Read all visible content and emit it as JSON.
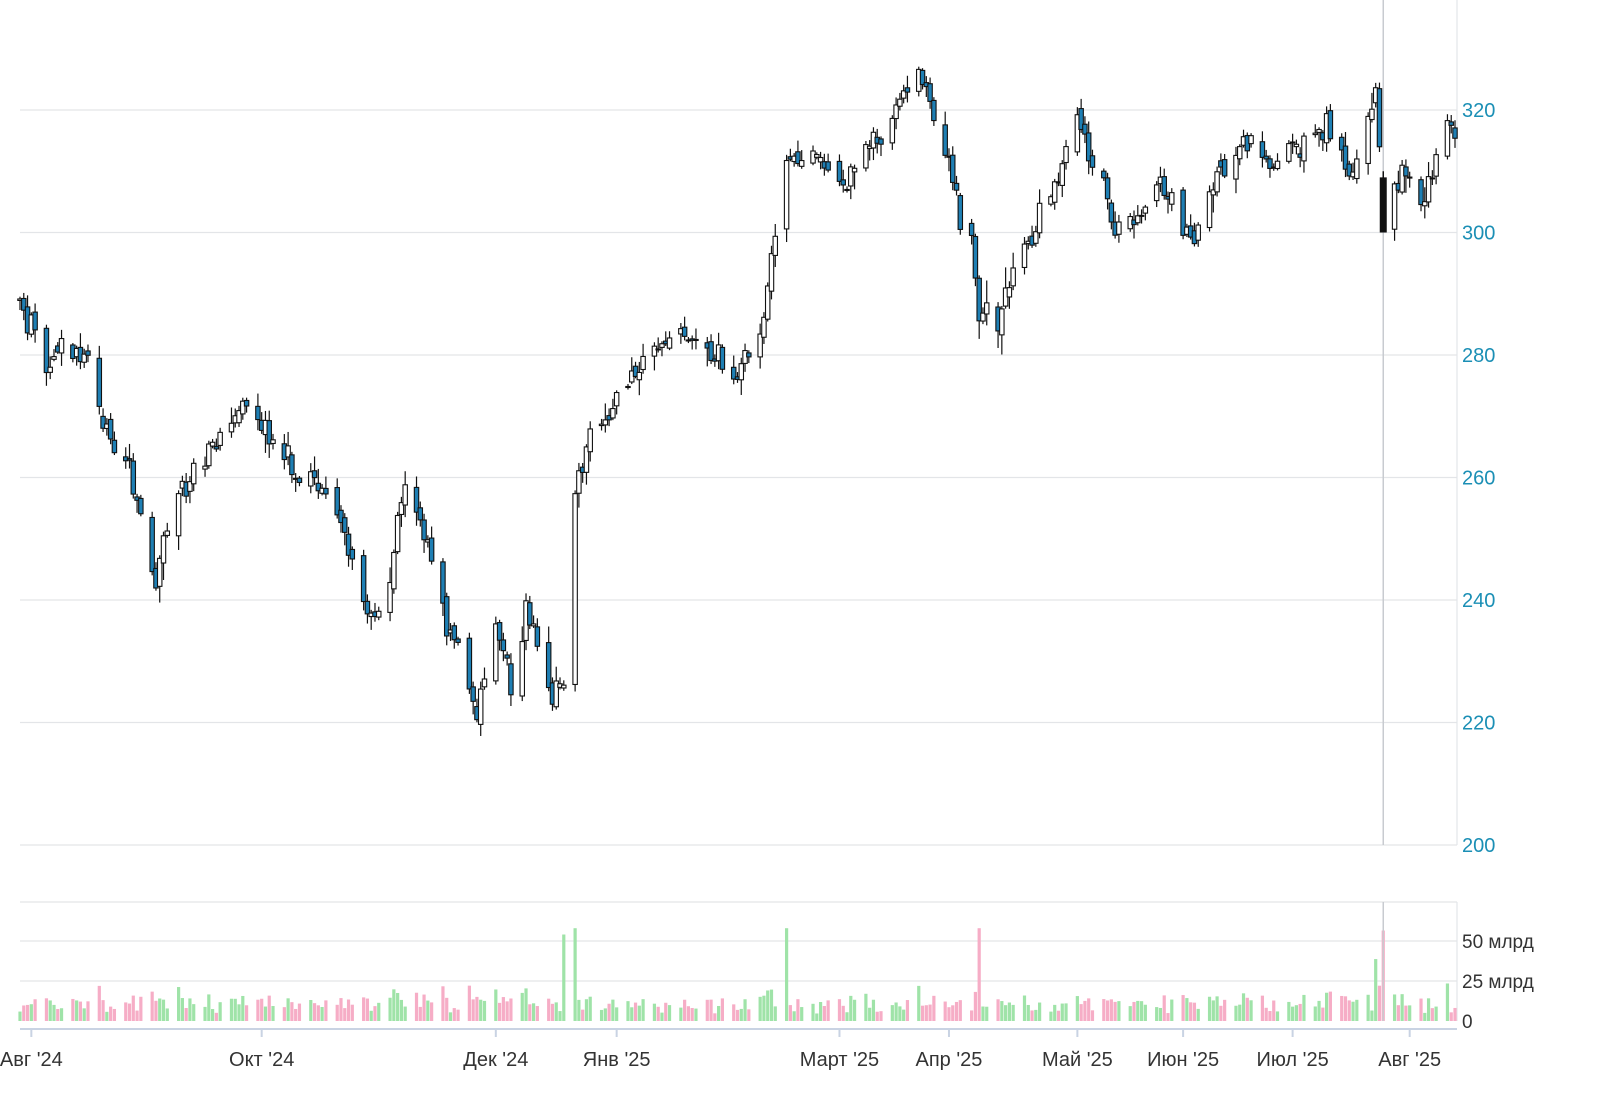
{
  "colors": {
    "background": "#ffffff",
    "grid": "#e3e5e8",
    "axis_line": "#c9d3e3",
    "price_label": "#1b8fb5",
    "volume_label": "#333333",
    "date_label": "#333333",
    "candle_up": "#ffffff",
    "candle_down": "#1e7fb4",
    "candle_outline": "#111111",
    "cursor_line": "#c8cbd0",
    "cursor_candle": "#111111",
    "volume_up": "#9fe3a8",
    "volume_down": "#f6adc6"
  },
  "chart_data": {
    "type": "candlestick",
    "price_axis": {
      "ylim": [
        200,
        334
      ],
      "ticks": [
        200,
        220,
        240,
        260,
        280,
        300,
        320
      ],
      "tick_labels": [
        "200",
        "220",
        "240",
        "260",
        "280",
        "300",
        "320"
      ]
    },
    "volume_axis": {
      "ylim": [
        0,
        75
      ],
      "ticks": [
        0,
        25,
        50
      ],
      "tick_labels": [
        "0",
        "25 млрд",
        "50 млрд"
      ],
      "unit": "млрд"
    },
    "x_axis": {
      "start": "2024-07-29",
      "end": "2025-08-13",
      "tick_dates": [
        "2024-08-01",
        "2024-10-01",
        "2024-12-02",
        "2025-01-03",
        "2025-03-03",
        "2025-04-01",
        "2025-05-05",
        "2025-06-02",
        "2025-07-01",
        "2025-08-01"
      ],
      "tick_labels": [
        "Авг '24",
        "Окт '24",
        "Дек '24",
        "Янв '25",
        "Март '25",
        "Апр '25",
        "Май '25",
        "Июн '25",
        "Июл '25",
        "Авг '25"
      ]
    },
    "anchors": [
      [
        "2024-07-29",
        289
      ],
      [
        "2024-08-05",
        278
      ],
      [
        "2024-08-10",
        283
      ],
      [
        "2024-08-16",
        280
      ],
      [
        "2024-08-22",
        265
      ],
      [
        "2024-08-27",
        262
      ],
      [
        "2024-09-03",
        243
      ],
      [
        "2024-09-06",
        252
      ],
      [
        "2024-09-12",
        260
      ],
      [
        "2024-09-20",
        267
      ],
      [
        "2024-09-26",
        273
      ],
      [
        "2024-10-01",
        268
      ],
      [
        "2024-10-07",
        263
      ],
      [
        "2024-10-14",
        260
      ],
      [
        "2024-10-22",
        253
      ],
      [
        "2024-10-28",
        240
      ],
      [
        "2024-11-01",
        238
      ],
      [
        "2024-11-05",
        248
      ],
      [
        "2024-11-08",
        260
      ],
      [
        "2024-11-14",
        249
      ],
      [
        "2024-11-20",
        235
      ],
      [
        "2024-11-27",
        223
      ],
      [
        "2024-12-02",
        236
      ],
      [
        "2024-12-06",
        227
      ],
      [
        "2024-12-10",
        238
      ],
      [
        "2024-12-17",
        226
      ],
      [
        "2024-12-20",
        228
      ],
      [
        "2024-12-23",
        257
      ],
      [
        "2024-12-27",
        268
      ],
      [
        "2025-01-03",
        272
      ],
      [
        "2025-01-10",
        280
      ],
      [
        "2025-01-16",
        282
      ],
      [
        "2025-01-22",
        283
      ],
      [
        "2025-01-30",
        280
      ],
      [
        "2025-02-04",
        277
      ],
      [
        "2025-02-10",
        284
      ],
      [
        "2025-02-14",
        300
      ],
      [
        "2025-02-17",
        312
      ],
      [
        "2025-02-24",
        313
      ],
      [
        "2025-03-04",
        306
      ],
      [
        "2025-03-10",
        313
      ],
      [
        "2025-03-17",
        319
      ],
      [
        "2025-03-24",
        326
      ],
      [
        "2025-03-28",
        320
      ],
      [
        "2025-04-02",
        310
      ],
      [
        "2025-04-04",
        302
      ],
      [
        "2025-04-07",
        298
      ],
      [
        "2025-04-09",
        286
      ],
      [
        "2025-04-14",
        285
      ],
      [
        "2025-04-18",
        295
      ],
      [
        "2025-04-24",
        300
      ],
      [
        "2025-04-29",
        308
      ],
      [
        "2025-05-05",
        318
      ],
      [
        "2025-05-12",
        308
      ],
      [
        "2025-05-15",
        300
      ],
      [
        "2025-05-21",
        302
      ],
      [
        "2025-05-26",
        308
      ],
      [
        "2025-06-02",
        302
      ],
      [
        "2025-06-05",
        298
      ],
      [
        "2025-06-10",
        309
      ],
      [
        "2025-06-16",
        312
      ],
      [
        "2025-06-20",
        315
      ],
      [
        "2025-06-25",
        310
      ],
      [
        "2025-07-01",
        313
      ],
      [
        "2025-07-07",
        317
      ],
      [
        "2025-07-11",
        318
      ],
      [
        "2025-07-15",
        312
      ],
      [
        "2025-07-17",
        308
      ],
      [
        "2025-07-21",
        318
      ],
      [
        "2025-07-23",
        323
      ],
      [
        "2025-07-25",
        306
      ],
      [
        "2025-07-30",
        310
      ],
      [
        "2025-08-04",
        304
      ],
      [
        "2025-08-07",
        310
      ],
      [
        "2025-08-11",
        318
      ],
      [
        "2025-08-13",
        318
      ]
    ],
    "spikes": [
      [
        "2024-12-20",
        4.0
      ],
      [
        "2024-12-23",
        4.0
      ],
      [
        "2025-02-17",
        3.6
      ],
      [
        "2025-04-09",
        3.0
      ],
      [
        "2025-06-18",
        2.2
      ],
      [
        "2025-07-23",
        2.8
      ],
      [
        "2025-07-25",
        2.6
      ],
      [
        "2025-03-24",
        1.8
      ],
      [
        "2025-08-11",
        2.0
      ]
    ],
    "cursor": {
      "date": "2025-07-25",
      "open": 309,
      "high": 310,
      "low": 300,
      "close": 300
    }
  }
}
